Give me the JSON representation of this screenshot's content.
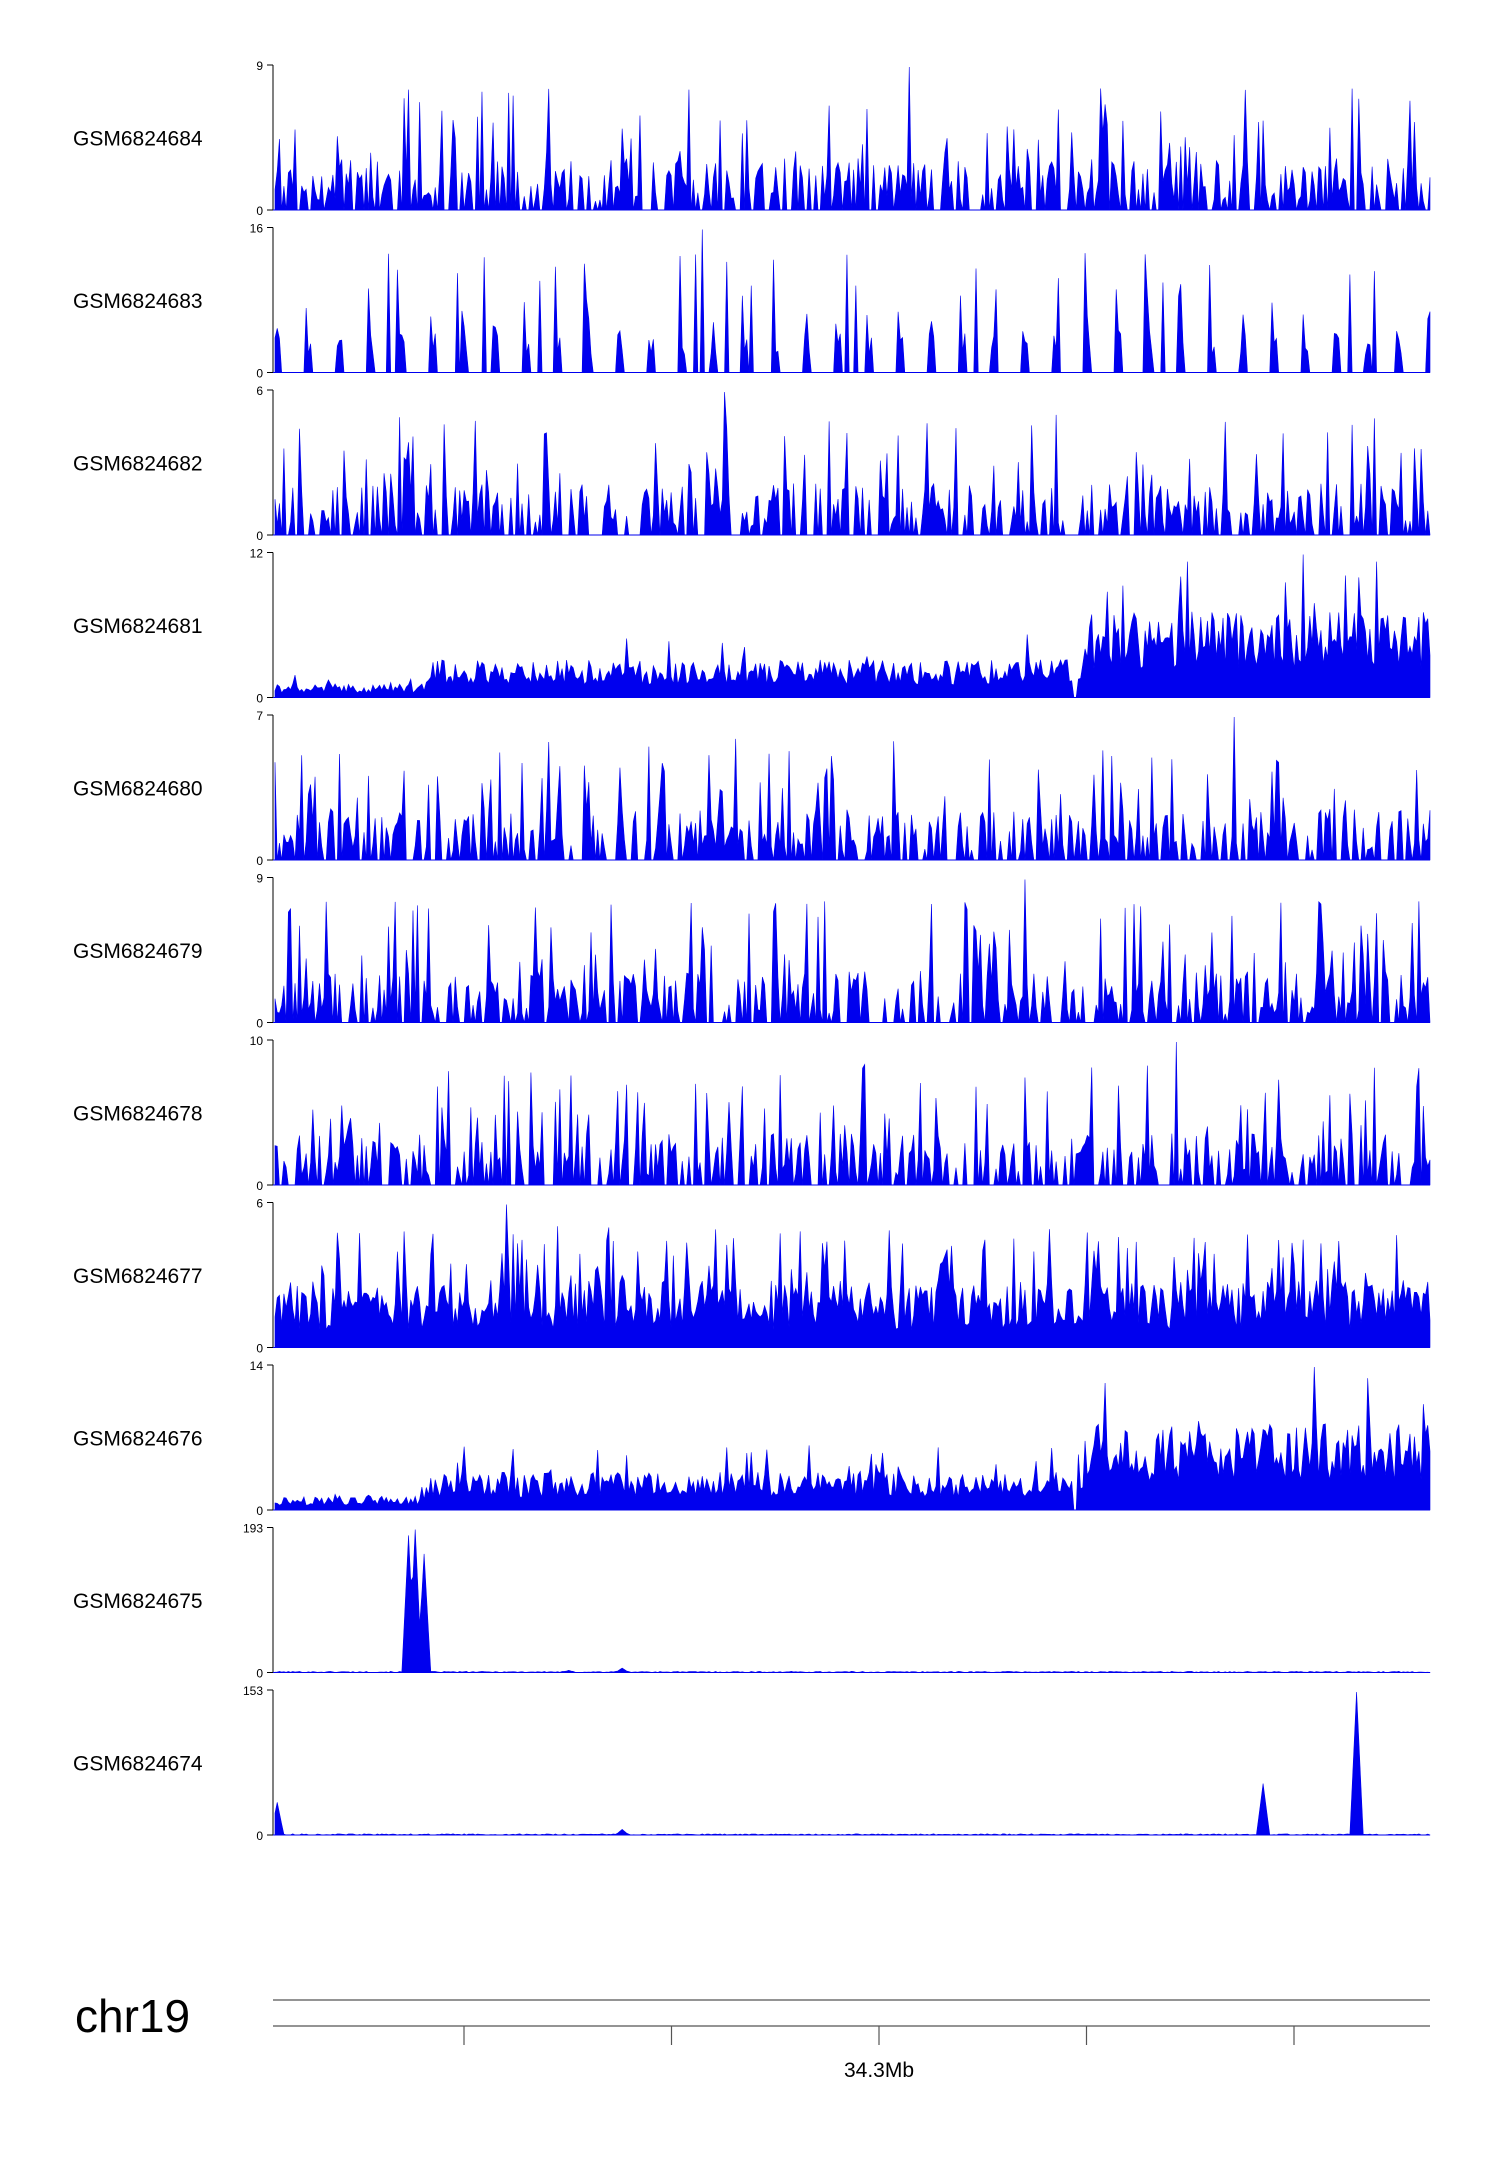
{
  "chart_data": {
    "type": "area",
    "genome_browser": true,
    "color": "#0000ee",
    "chromosome": "chr19",
    "x_axis": {
      "tick_labels": [
        {
          "text": "34.3Mb",
          "tick_index": 3
        }
      ],
      "tick_count": 6
    },
    "tracks": [
      {
        "name": "GSM6824684",
        "ymin_label": "0",
        "ymax_label": "9",
        "ymax": 9,
        "profile": "spiky",
        "seed": 11,
        "peaks": [
          [
            0.55,
            9
          ]
        ]
      },
      {
        "name": "GSM6824683",
        "ymin_label": "0",
        "ymax_label": "16",
        "ymax": 16,
        "profile": "sparse",
        "seed": 23,
        "peaks": [
          [
            0.37,
            16
          ]
        ]
      },
      {
        "name": "GSM6824682",
        "ymin_label": "0",
        "ymax_label": "6",
        "ymax": 6,
        "profile": "spiky",
        "seed": 37,
        "peaks": [
          [
            0.39,
            6
          ]
        ]
      },
      {
        "name": "GSM6824681",
        "ymin_label": "0",
        "ymax_label": "12",
        "ymax": 12,
        "profile": "rising",
        "seed": 41,
        "peaks": [
          [
            0.89,
            12
          ]
        ]
      },
      {
        "name": "GSM6824680",
        "ymin_label": "0",
        "ymax_label": "7",
        "ymax": 7,
        "profile": "spiky",
        "seed": 53,
        "peaks": [
          [
            0.83,
            7
          ]
        ]
      },
      {
        "name": "GSM6824679",
        "ymin_label": "0",
        "ymax_label": "9",
        "ymax": 9,
        "profile": "spiky",
        "seed": 67,
        "peaks": [
          [
            0.65,
            9
          ]
        ]
      },
      {
        "name": "GSM6824678",
        "ymin_label": "0",
        "ymax_label": "10",
        "ymax": 10,
        "profile": "spiky",
        "seed": 71,
        "peaks": [
          [
            0.78,
            10
          ]
        ]
      },
      {
        "name": "GSM6824677",
        "ymin_label": "0",
        "ymax_label": "6",
        "ymax": 6,
        "profile": "dense",
        "seed": 83,
        "peaks": [
          [
            0.2,
            6
          ]
        ]
      },
      {
        "name": "GSM6824676",
        "ymin_label": "0",
        "ymax_label": "14",
        "ymax": 14,
        "profile": "rising",
        "seed": 97,
        "peaks": [
          [
            0.9,
            14
          ]
        ]
      },
      {
        "name": "GSM6824675",
        "ymin_label": "0",
        "ymax_label": "193",
        "ymax": 193,
        "profile": "flat",
        "seed": 101,
        "peaks": [
          [
            0.115,
            185
          ],
          [
            0.122,
            193
          ],
          [
            0.13,
            160
          ],
          [
            0.255,
            3
          ],
          [
            0.3,
            6
          ]
        ]
      },
      {
        "name": "GSM6824674",
        "ymin_label": "0",
        "ymax_label": "153",
        "ymax": 153,
        "profile": "flat",
        "seed": 113,
        "peaks": [
          [
            0.002,
            35
          ],
          [
            0.855,
            55
          ],
          [
            0.936,
            153
          ],
          [
            0.3,
            6
          ]
        ]
      }
    ]
  }
}
